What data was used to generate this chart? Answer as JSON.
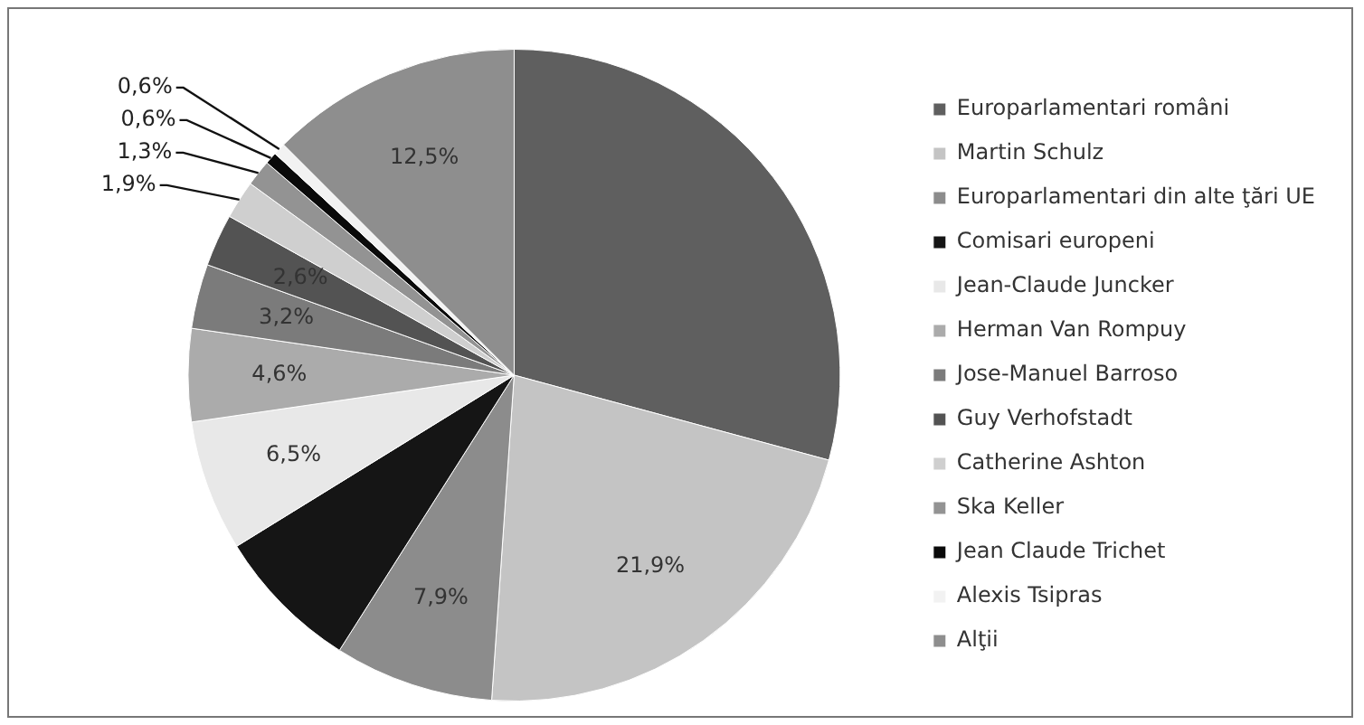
{
  "chart_data": {
    "type": "pie",
    "categories": [
      "Europarlamentari români",
      "Martin Schulz",
      "Europarlamentari din alte ţări UE",
      "Comisari europeni",
      "Jean-Claude Juncker",
      "Herman Van Rompuy",
      "Jose-Manuel Barroso",
      "Guy Verhofstadt",
      "Catherine Ashton",
      "Ska Keller",
      "Jean Claude Trichet",
      "Alexis Tsipras",
      "Alţii"
    ],
    "values": [
      29.2,
      21.9,
      7.9,
      7.2,
      6.5,
      4.6,
      3.2,
      2.6,
      1.9,
      1.3,
      0.6,
      0.6,
      12.5
    ],
    "colors": [
      "#5f5f5f",
      "#c4c4c4",
      "#8c8c8c",
      "#151515",
      "#e8e8e8",
      "#ababab",
      "#7b7b7b",
      "#535353",
      "#cfcfcf",
      "#939393",
      "#0a0a0a",
      "#f2f2f2",
      "#8e8e8e"
    ],
    "value_labels": [
      null,
      "21,9%",
      "7,9%",
      null,
      "6,5%",
      "4,6%",
      "3,2%",
      "2,6%",
      "1,9%",
      "1,3%",
      "0,6%",
      "0,6%",
      "12,5%"
    ],
    "legend": "right"
  }
}
